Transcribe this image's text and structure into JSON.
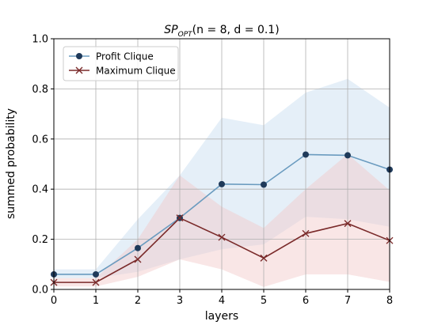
{
  "chart_data": {
    "type": "line",
    "title": {
      "main": "SP",
      "subscript": "OPT",
      "rest": "(n = 8, d = 0.1)"
    },
    "xlabel": "layers",
    "ylabel": "summed probability",
    "xlim": [
      0,
      8
    ],
    "ylim": [
      0,
      1.0
    ],
    "x_ticks": [
      "0",
      "1",
      "2",
      "3",
      "4",
      "5",
      "6",
      "7",
      "8"
    ],
    "y_ticks": [
      "0.0",
      "0.2",
      "0.4",
      "0.6",
      "0.8",
      "1.0"
    ],
    "grid": true,
    "legend_position": "top-left",
    "x": [
      0,
      1,
      2,
      3,
      4,
      5,
      6,
      7,
      8
    ],
    "series": [
      {
        "name": "Profit Clique",
        "color": "#6a9bbf",
        "marker_color": "#1f3a5a",
        "band_color": "#c6dbef",
        "marker": "circle",
        "values": [
          0.06,
          0.06,
          0.165,
          0.285,
          0.42,
          0.418,
          0.538,
          0.535,
          0.478
        ],
        "lower": [
          0.045,
          0.045,
          0.07,
          0.12,
          0.16,
          0.18,
          0.29,
          0.28,
          0.25
        ],
        "upper": [
          0.08,
          0.08,
          0.28,
          0.455,
          0.685,
          0.655,
          0.785,
          0.84,
          0.725
        ]
      },
      {
        "name": "Maximum Clique",
        "color": "#7a2a2a",
        "marker_color": "#7a2a2a",
        "band_color": "#f2c8c8",
        "marker": "x",
        "values": [
          0.028,
          0.028,
          0.12,
          0.285,
          0.208,
          0.125,
          0.223,
          0.263,
          0.195
        ],
        "lower": [
          0.012,
          0.012,
          0.05,
          0.12,
          0.08,
          0.01,
          0.06,
          0.06,
          0.03
        ],
        "upper": [
          0.045,
          0.045,
          0.2,
          0.455,
          0.33,
          0.245,
          0.4,
          0.54,
          0.395
        ]
      }
    ]
  }
}
